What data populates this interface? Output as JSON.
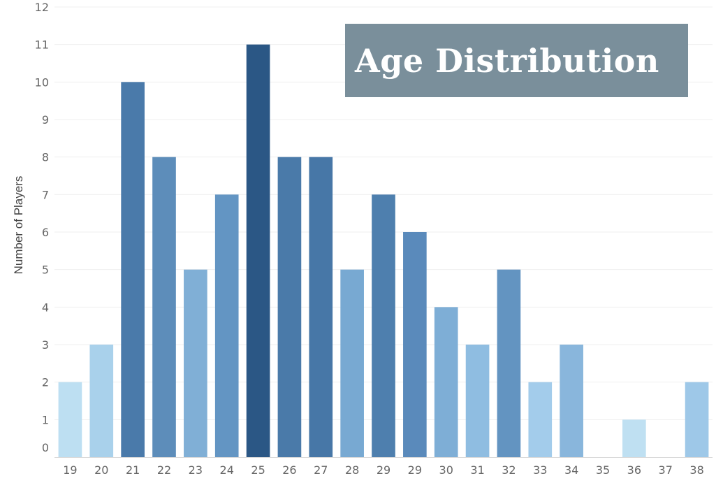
{
  "chart_data": {
    "type": "bar",
    "title": "Age Distribution",
    "xlabel": "",
    "ylabel": "Number of Players",
    "ylim": [
      0,
      12
    ],
    "yticks": [
      0,
      1,
      2,
      3,
      4,
      5,
      6,
      7,
      8,
      9,
      10,
      11,
      12
    ],
    "grid": true,
    "categories": [
      "19",
      "20",
      "21",
      "22",
      "23",
      "24",
      "25",
      "26",
      "27",
      "28",
      "29",
      "29",
      "30",
      "31",
      "32",
      "33",
      "34",
      "35",
      "36",
      "37",
      "38"
    ],
    "values": [
      2,
      3,
      10,
      8,
      5,
      7,
      11,
      8,
      8,
      5,
      7,
      6,
      4,
      3,
      5,
      2,
      3,
      0,
      1,
      0,
      2
    ],
    "colors": [
      "#bddff2",
      "#a9d1eb",
      "#4a7aaa",
      "#5d8dba",
      "#80afd6",
      "#6395c3",
      "#2b5785",
      "#4a7aa9",
      "#4777a7",
      "#78a9d2",
      "#4e7fae",
      "#5a8abb",
      "#7eaed6",
      "#8fbde1",
      "#6394c1",
      "#a3cceb",
      "#89b6dc",
      "#ffffff",
      "#bfe0f2",
      "#ffffff",
      "#9ec8e8"
    ]
  }
}
